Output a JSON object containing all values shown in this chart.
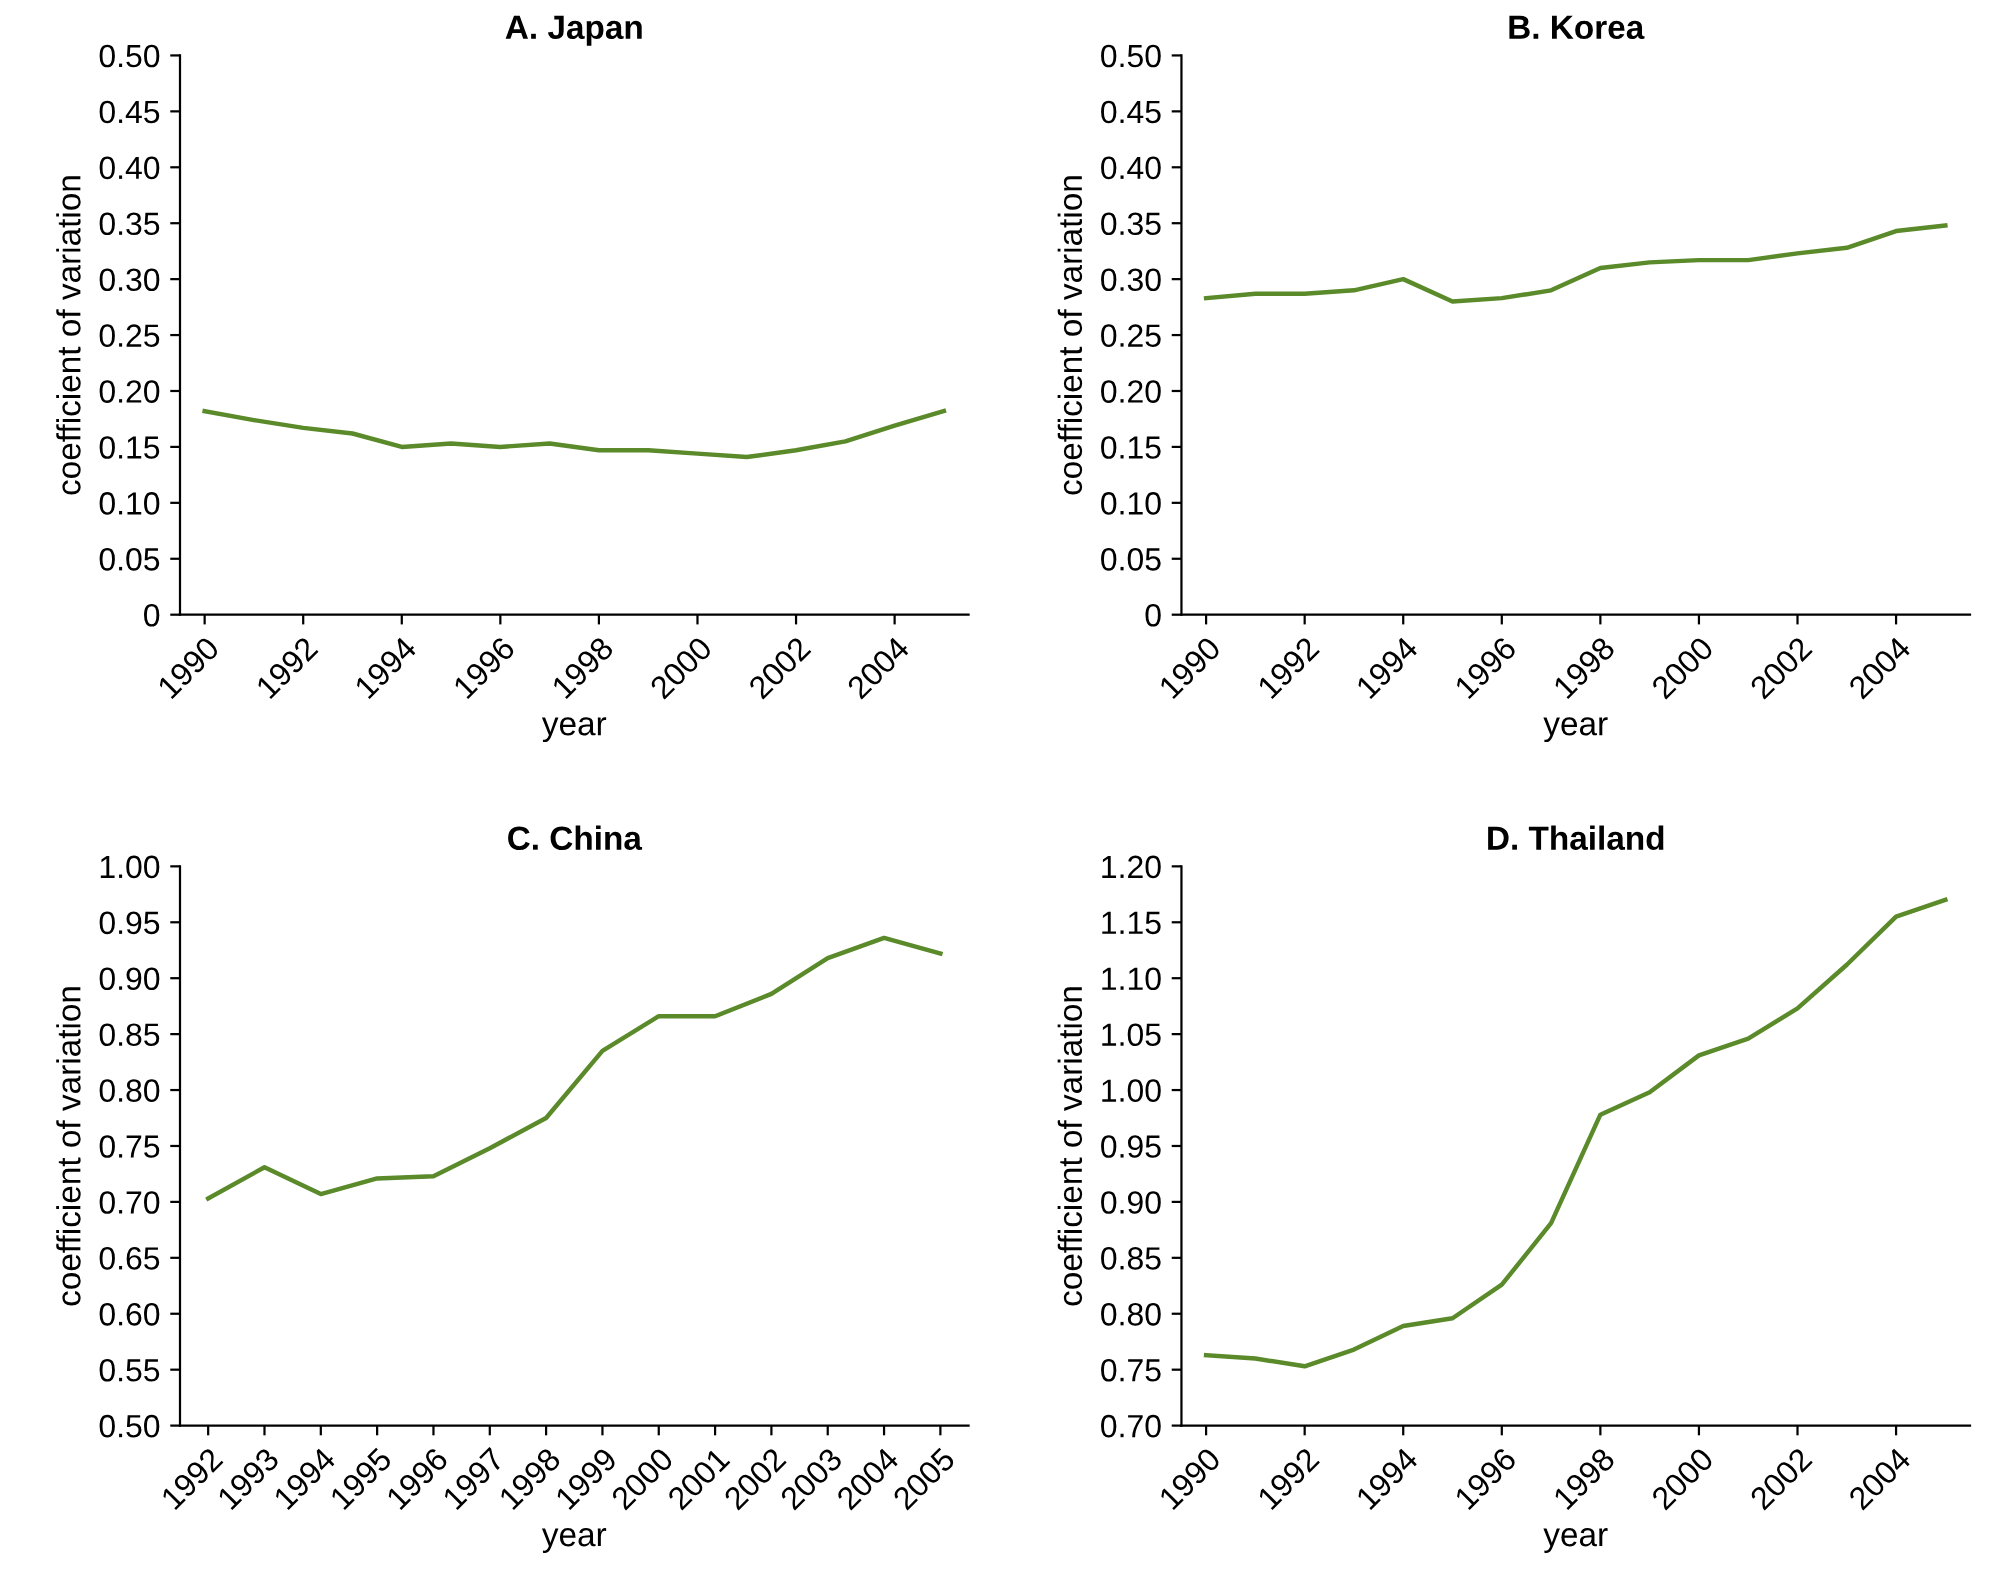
{
  "chart_data": [
    {
      "type": "line",
      "title": "A. Japan",
      "xlabel": "year",
      "ylabel": "coefficient of variation",
      "x": [
        1990,
        1991,
        1992,
        1993,
        1994,
        1995,
        1996,
        1997,
        1998,
        1999,
        2000,
        2001,
        2002,
        2003,
        2004,
        2005
      ],
      "series": [
        {
          "color": "#5a8a2a",
          "values": [
            0.182,
            0.174,
            0.167,
            0.162,
            0.15,
            0.153,
            0.15,
            0.153,
            0.147,
            0.147,
            0.144,
            0.141,
            0.147,
            0.155,
            0.169,
            0.182
          ]
        }
      ],
      "xlim": [
        1989.5,
        2005.5
      ],
      "xticks": [
        1990,
        1992,
        1994,
        1996,
        1998,
        2000,
        2002,
        2004
      ],
      "ylim": [
        0,
        0.5
      ],
      "yticks": [
        0,
        0.05,
        {
          "value": 0.1,
          "label": "0.10"
        },
        0.15,
        {
          "value": 0.2,
          "label": "0.20"
        },
        0.25,
        {
          "value": 0.3,
          "label": "0.30"
        },
        0.35,
        {
          "value": 0.4,
          "label": "0.40"
        },
        0.45,
        {
          "value": 0.5,
          "label": "0.50"
        }
      ],
      "grid": false,
      "legend": false
    },
    {
      "type": "line",
      "title": "B. Korea",
      "xlabel": "year",
      "ylabel": "coefficient of variation",
      "x": [
        1990,
        1991,
        1992,
        1993,
        1994,
        1995,
        1996,
        1997,
        1998,
        1999,
        2000,
        2001,
        2002,
        2003,
        2004,
        2005
      ],
      "series": [
        {
          "color": "#5a8a2a",
          "values": [
            0.283,
            0.287,
            0.287,
            0.29,
            0.3,
            0.28,
            0.283,
            0.29,
            0.31,
            0.315,
            0.317,
            0.317,
            0.323,
            0.328,
            0.343,
            0.348
          ]
        }
      ],
      "xlim": [
        1989.5,
        2005.5
      ],
      "xticks": [
        1990,
        1992,
        1994,
        1996,
        1998,
        2000,
        2002,
        2004
      ],
      "ylim": [
        0,
        0.5
      ],
      "yticks": [
        0,
        0.05,
        {
          "value": 0.1,
          "label": "0.10"
        },
        0.15,
        {
          "value": 0.2,
          "label": "0.20"
        },
        0.25,
        {
          "value": 0.3,
          "label": "0.30"
        },
        0.35,
        {
          "value": 0.4,
          "label": "0.40"
        },
        0.45,
        {
          "value": 0.5,
          "label": "0.50"
        }
      ],
      "grid": false,
      "legend": false
    },
    {
      "type": "line",
      "title": "C. China",
      "xlabel": "year",
      "ylabel": "coefficient of variation",
      "x": [
        1992,
        1993,
        1994,
        1995,
        1996,
        1997,
        1998,
        1999,
        2000,
        2001,
        2002,
        2003,
        2004,
        2005
      ],
      "series": [
        {
          "color": "#5a8a2a",
          "values": [
            0.703,
            0.731,
            0.707,
            0.721,
            0.723,
            0.748,
            0.775,
            0.835,
            0.866,
            0.866,
            0.886,
            0.918,
            0.936,
            0.922
          ]
        }
      ],
      "xlim": [
        1991.5,
        2005.5
      ],
      "xticks": [
        1992,
        1993,
        1994,
        1995,
        1996,
        1997,
        1998,
        1999,
        2000,
        2001,
        2002,
        2003,
        2004,
        2005
      ],
      "ylim": [
        0.5,
        1.0
      ],
      "yticks": [
        {
          "value": 0.5,
          "label": "0.50"
        },
        0.55,
        {
          "value": 0.6,
          "label": "0.60"
        },
        0.65,
        {
          "value": 0.7,
          "label": "0.70"
        },
        0.75,
        {
          "value": 0.8,
          "label": "0.80"
        },
        0.85,
        {
          "value": 0.9,
          "label": "0.90"
        },
        0.95,
        {
          "value": 1.0,
          "label": "1.00"
        }
      ],
      "grid": false,
      "legend": false
    },
    {
      "type": "line",
      "title": "D. Thailand",
      "xlabel": "year",
      "ylabel": "coefficient of variation",
      "x": [
        1990,
        1991,
        1992,
        1993,
        1994,
        1995,
        1996,
        1997,
        1998,
        1999,
        2000,
        2001,
        2002,
        2003,
        2004,
        2005
      ],
      "series": [
        {
          "color": "#5a8a2a",
          "values": [
            0.763,
            0.76,
            0.753,
            0.768,
            0.789,
            0.796,
            0.826,
            0.881,
            0.978,
            0.998,
            1.031,
            1.046,
            1.073,
            1.112,
            1.155,
            1.17
          ]
        }
      ],
      "xlim": [
        1989.5,
        2005.5
      ],
      "xticks": [
        1990,
        1992,
        1994,
        1996,
        1998,
        2000,
        2002,
        2004
      ],
      "ylim": [
        0.7,
        1.2
      ],
      "yticks": [
        {
          "value": 0.7,
          "label": "0.70"
        },
        0.75,
        {
          "value": 0.8,
          "label": "0.80"
        },
        0.85,
        {
          "value": 0.9,
          "label": "0.90"
        },
        0.95,
        {
          "value": 1.0,
          "label": "1.00"
        },
        1.05,
        {
          "value": 1.1,
          "label": "1.10"
        },
        1.15,
        {
          "value": 1.2,
          "label": "1.20"
        }
      ],
      "grid": false,
      "legend": false
    }
  ]
}
